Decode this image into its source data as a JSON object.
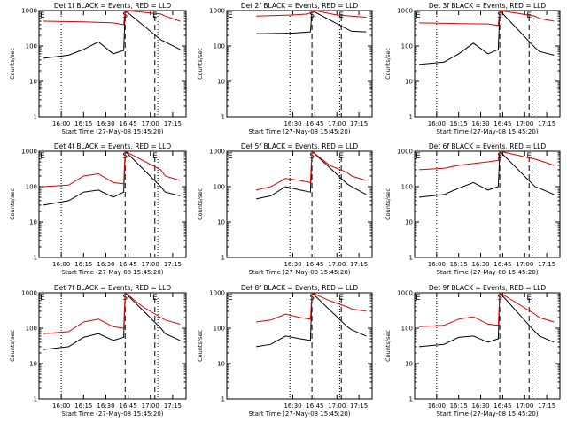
{
  "chart_data": [
    {
      "type": "line",
      "title": "Det 1f BLACK = Events, RED = LLD",
      "xlabel": "Start Time (27-May-08 15:45:20)",
      "ylabel": "Counts/sec",
      "y_scale": "log",
      "ylim": [
        1,
        1000
      ],
      "x_ticks": [
        "16:00",
        "16:15",
        "16:30",
        "16:45",
        "17:00",
        "17:15"
      ],
      "y_ticks": [
        "1",
        "10",
        "100",
        "1000"
      ],
      "markers": [
        "E",
        "S",
        "E"
      ],
      "dotted_lines": [
        "16:00",
        "17:05"
      ],
      "dashed_lines": [
        "16:43",
        "17:03"
      ],
      "series": [
        {
          "name": "BLACK = Events",
          "color": "#000000",
          "x": [
            "15:48",
            "16:05",
            "16:15",
            "16:25",
            "16:35",
            "16:42",
            "16:43",
            "17:07",
            "17:10",
            "17:20"
          ],
          "values": [
            45,
            55,
            80,
            130,
            60,
            75,
            1000,
            150,
            130,
            80
          ]
        },
        {
          "name": "RED = LLD",
          "color": "#e00000",
          "x": [
            "15:48",
            "16:15",
            "16:35",
            "16:42",
            "16:43",
            "17:07",
            "17:10",
            "17:20"
          ],
          "values": [
            500,
            480,
            450,
            400,
            1000,
            800,
            700,
            500
          ]
        }
      ]
    },
    {
      "type": "line",
      "title": "Det 2f BLACK = Events, RED = LLD",
      "xlabel": "Start Time (27-May-08 15:45:20)",
      "ylabel": "Counts/sec",
      "y_scale": "log",
      "ylim": [
        1,
        1000
      ],
      "x_ticks": [
        "16:30",
        "16:45",
        "17:00",
        "17:15"
      ],
      "y_ticks": [
        "1",
        "10",
        "100",
        "1000"
      ],
      "markers": [
        "E",
        "S",
        "E"
      ],
      "dotted_lines": [
        "16:28",
        "17:02"
      ],
      "dashed_lines": [
        "16:43",
        "17:03"
      ],
      "series": [
        {
          "name": "BLACK = Events",
          "color": "#000000",
          "x": [
            "16:05",
            "16:30",
            "16:42",
            "16:43",
            "17:07",
            "17:10",
            "17:20"
          ],
          "values": [
            220,
            230,
            250,
            1000,
            300,
            260,
            250
          ]
        },
        {
          "name": "RED = LLD",
          "color": "#e00000",
          "x": [
            "16:05",
            "16:30",
            "16:40",
            "16:45",
            "16:50",
            "17:00",
            "17:10",
            "17:20"
          ],
          "values": [
            700,
            750,
            800,
            1000,
            900,
            750,
            700,
            650
          ]
        }
      ]
    },
    {
      "type": "line",
      "title": "Det 3f BLACK = Events, RED = LLD",
      "xlabel": "Start Time (27-May-08 15:45:20)",
      "ylabel": "Counts/sec",
      "y_scale": "log",
      "ylim": [
        1,
        1000
      ],
      "x_ticks": [
        "16:00",
        "16:15",
        "16:30",
        "16:45",
        "17:00",
        "17:15"
      ],
      "y_ticks": [
        "1",
        "10",
        "100",
        "1000"
      ],
      "markers": [
        "E",
        "S",
        "E"
      ],
      "dotted_lines": [
        "16:00",
        "17:05"
      ],
      "dashed_lines": [
        "16:43",
        "17:03"
      ],
      "series": [
        {
          "name": "BLACK = Events",
          "color": "#000000",
          "x": [
            "15:48",
            "16:05",
            "16:15",
            "16:25",
            "16:35",
            "16:42",
            "16:43",
            "17:07",
            "17:10",
            "17:20"
          ],
          "values": [
            30,
            35,
            60,
            120,
            60,
            80,
            1000,
            90,
            70,
            55
          ]
        },
        {
          "name": "RED = LLD",
          "color": "#e00000",
          "x": [
            "15:48",
            "16:15",
            "16:35",
            "16:42",
            "16:43",
            "17:07",
            "17:10",
            "17:20"
          ],
          "values": [
            450,
            430,
            420,
            380,
            1000,
            700,
            600,
            500
          ]
        }
      ]
    },
    {
      "type": "line",
      "title": "Det 4f BLACK = Events, RED = LLD",
      "xlabel": "Start Time (27-May-08 15:45:20)",
      "ylabel": "Counts/sec",
      "y_scale": "log",
      "ylim": [
        1,
        1000
      ],
      "x_ticks": [
        "16:00",
        "16:15",
        "16:30",
        "16:45",
        "17:00",
        "17:15"
      ],
      "y_ticks": [
        "1",
        "10",
        "100",
        "1000"
      ],
      "markers": [
        "E",
        "S",
        "E"
      ],
      "dotted_lines": [
        "16:00",
        "17:05"
      ],
      "dashed_lines": [
        "16:43",
        "17:03"
      ],
      "series": [
        {
          "name": "BLACK = Events",
          "color": "#000000",
          "x": [
            "15:48",
            "16:05",
            "16:15",
            "16:25",
            "16:35",
            "16:42",
            "16:43",
            "17:07",
            "17:10",
            "17:20"
          ],
          "values": [
            30,
            40,
            70,
            80,
            50,
            70,
            1000,
            100,
            70,
            55
          ]
        },
        {
          "name": "RED = LLD",
          "color": "#e00000",
          "x": [
            "15:48",
            "16:05",
            "16:15",
            "16:25",
            "16:35",
            "16:42",
            "16:43",
            "17:07",
            "17:10",
            "17:20"
          ],
          "values": [
            100,
            110,
            200,
            230,
            130,
            120,
            1000,
            300,
            200,
            150
          ]
        }
      ]
    },
    {
      "type": "line",
      "title": "Det 5f BLACK = Events, RED = LLD",
      "xlabel": "Start Time (27-May-08 15:45:20)",
      "ylabel": "Counts/sec",
      "y_scale": "log",
      "ylim": [
        1,
        1000
      ],
      "x_ticks": [
        "16:30",
        "16:45",
        "17:00",
        "17:15"
      ],
      "y_ticks": [
        "1",
        "10",
        "100",
        "1000"
      ],
      "markers": [
        "E",
        "S",
        "E"
      ],
      "dotted_lines": [
        "16:28",
        "17:02"
      ],
      "dashed_lines": [
        "16:43",
        "17:03"
      ],
      "series": [
        {
          "name": "BLACK = Events",
          "color": "#000000",
          "x": [
            "16:05",
            "16:15",
            "16:25",
            "16:35",
            "16:42",
            "16:43",
            "17:07",
            "17:10",
            "17:20"
          ],
          "values": [
            45,
            55,
            100,
            80,
            70,
            1000,
            120,
            100,
            60
          ]
        },
        {
          "name": "RED = LLD",
          "color": "#e00000",
          "x": [
            "16:05",
            "16:15",
            "16:25",
            "16:35",
            "16:42",
            "16:43",
            "16:55",
            "17:07",
            "17:10",
            "17:20"
          ],
          "values": [
            80,
            100,
            170,
            150,
            130,
            1000,
            400,
            250,
            200,
            150
          ]
        }
      ]
    },
    {
      "type": "line",
      "title": "Det 6f BLACK = Events, RED = LLD",
      "xlabel": "Start Time (27-May-08 15:45:20)",
      "ylabel": "Counts/sec",
      "y_scale": "log",
      "ylim": [
        1,
        1000
      ],
      "x_ticks": [
        "16:00",
        "16:15",
        "16:30",
        "16:45",
        "17:00",
        "17:15"
      ],
      "y_ticks": [
        "1",
        "10",
        "100",
        "1000"
      ],
      "markers": [
        "E",
        "S",
        "E"
      ],
      "dotted_lines": [
        "16:00",
        "17:05"
      ],
      "dashed_lines": [
        "16:43",
        "17:03"
      ],
      "series": [
        {
          "name": "BLACK = Events",
          "color": "#000000",
          "x": [
            "15:48",
            "16:05",
            "16:15",
            "16:25",
            "16:35",
            "16:42",
            "16:43",
            "17:07",
            "17:10",
            "17:20"
          ],
          "values": [
            50,
            60,
            90,
            130,
            80,
            100,
            1000,
            100,
            90,
            60
          ]
        },
        {
          "name": "RED = LLD",
          "color": "#e00000",
          "x": [
            "15:48",
            "16:05",
            "16:15",
            "16:25",
            "16:35",
            "16:42",
            "16:43",
            "17:07",
            "17:10",
            "17:20"
          ],
          "values": [
            300,
            330,
            400,
            450,
            500,
            550,
            1000,
            600,
            550,
            400
          ]
        }
      ]
    },
    {
      "type": "line",
      "title": "Det 7f BLACK = Events, RED = LLD",
      "xlabel": "Start Time (27-May-08 15:45:20)",
      "ylabel": "Counts/sec",
      "y_scale": "log",
      "ylim": [
        1,
        1000
      ],
      "x_ticks": [
        "16:00",
        "16:15",
        "16:30",
        "16:45",
        "17:00",
        "17:15"
      ],
      "y_ticks": [
        "1",
        "10",
        "100",
        "1000"
      ],
      "markers": [
        "E",
        "S",
        "E"
      ],
      "dotted_lines": [
        "16:00",
        "17:05"
      ],
      "dashed_lines": [
        "16:43",
        "17:03"
      ],
      "series": [
        {
          "name": "BLACK = Events",
          "color": "#000000",
          "x": [
            "15:48",
            "16:05",
            "16:15",
            "16:25",
            "16:35",
            "16:42",
            "16:43",
            "17:07",
            "17:10",
            "17:20"
          ],
          "values": [
            25,
            30,
            55,
            70,
            45,
            55,
            1000,
            100,
            70,
            45
          ]
        },
        {
          "name": "RED = LLD",
          "color": "#e00000",
          "x": [
            "15:48",
            "16:05",
            "16:15",
            "16:25",
            "16:35",
            "16:42",
            "16:43",
            "16:55",
            "17:07",
            "17:10",
            "17:20"
          ],
          "values": [
            70,
            80,
            150,
            180,
            110,
            100,
            1000,
            400,
            200,
            170,
            130
          ]
        }
      ]
    },
    {
      "type": "line",
      "title": "Det 8f BLACK = Events, RED = LLD",
      "xlabel": "Start Time (27-May-08 15:45:20)",
      "ylabel": "Counts/sec",
      "y_scale": "log",
      "ylim": [
        1,
        1000
      ],
      "x_ticks": [
        "16:30",
        "16:45",
        "17:00",
        "17:15"
      ],
      "y_ticks": [
        "1",
        "10",
        "100",
        "1000"
      ],
      "markers": [
        "E",
        "S",
        "E"
      ],
      "dotted_lines": [
        "16:28",
        "17:02"
      ],
      "dashed_lines": [
        "16:43",
        "17:03"
      ],
      "series": [
        {
          "name": "BLACK = Events",
          "color": "#000000",
          "x": [
            "16:05",
            "16:15",
            "16:25",
            "16:35",
            "16:42",
            "16:43",
            "17:07",
            "17:10",
            "17:20"
          ],
          "values": [
            30,
            35,
            60,
            50,
            45,
            1000,
            110,
            90,
            60
          ]
        },
        {
          "name": "RED = LLD",
          "color": "#e00000",
          "x": [
            "16:05",
            "16:15",
            "16:25",
            "16:35",
            "16:42",
            "16:43",
            "16:55",
            "17:07",
            "17:10",
            "17:20"
          ],
          "values": [
            150,
            170,
            250,
            200,
            180,
            1000,
            600,
            400,
            350,
            300
          ]
        }
      ]
    },
    {
      "type": "line",
      "title": "Det 9f BLACK = Events, RED = LLD",
      "xlabel": "Start Time (27-May-08 15:45:20)",
      "ylabel": "Counts/sec",
      "y_scale": "log",
      "ylim": [
        1,
        1000
      ],
      "x_ticks": [
        "16:00",
        "16:15",
        "16:30",
        "16:45",
        "17:00",
        "17:15"
      ],
      "y_ticks": [
        "1",
        "10",
        "100",
        "1000"
      ],
      "markers": [
        "E",
        "S",
        "E"
      ],
      "dotted_lines": [
        "16:00",
        "17:05"
      ],
      "dashed_lines": [
        "16:43",
        "17:03"
      ],
      "series": [
        {
          "name": "BLACK = Events",
          "color": "#000000",
          "x": [
            "15:48",
            "16:05",
            "16:15",
            "16:25",
            "16:35",
            "16:42",
            "16:43",
            "17:07",
            "17:10",
            "17:20"
          ],
          "values": [
            30,
            35,
            55,
            60,
            40,
            50,
            1000,
            80,
            60,
            40
          ]
        },
        {
          "name": "RED = LLD",
          "color": "#e00000",
          "x": [
            "15:48",
            "16:05",
            "16:15",
            "16:25",
            "16:35",
            "16:42",
            "16:43",
            "16:55",
            "17:07",
            "17:10",
            "17:20"
          ],
          "values": [
            110,
            120,
            180,
            210,
            130,
            120,
            1000,
            500,
            250,
            200,
            150
          ]
        }
      ]
    }
  ]
}
